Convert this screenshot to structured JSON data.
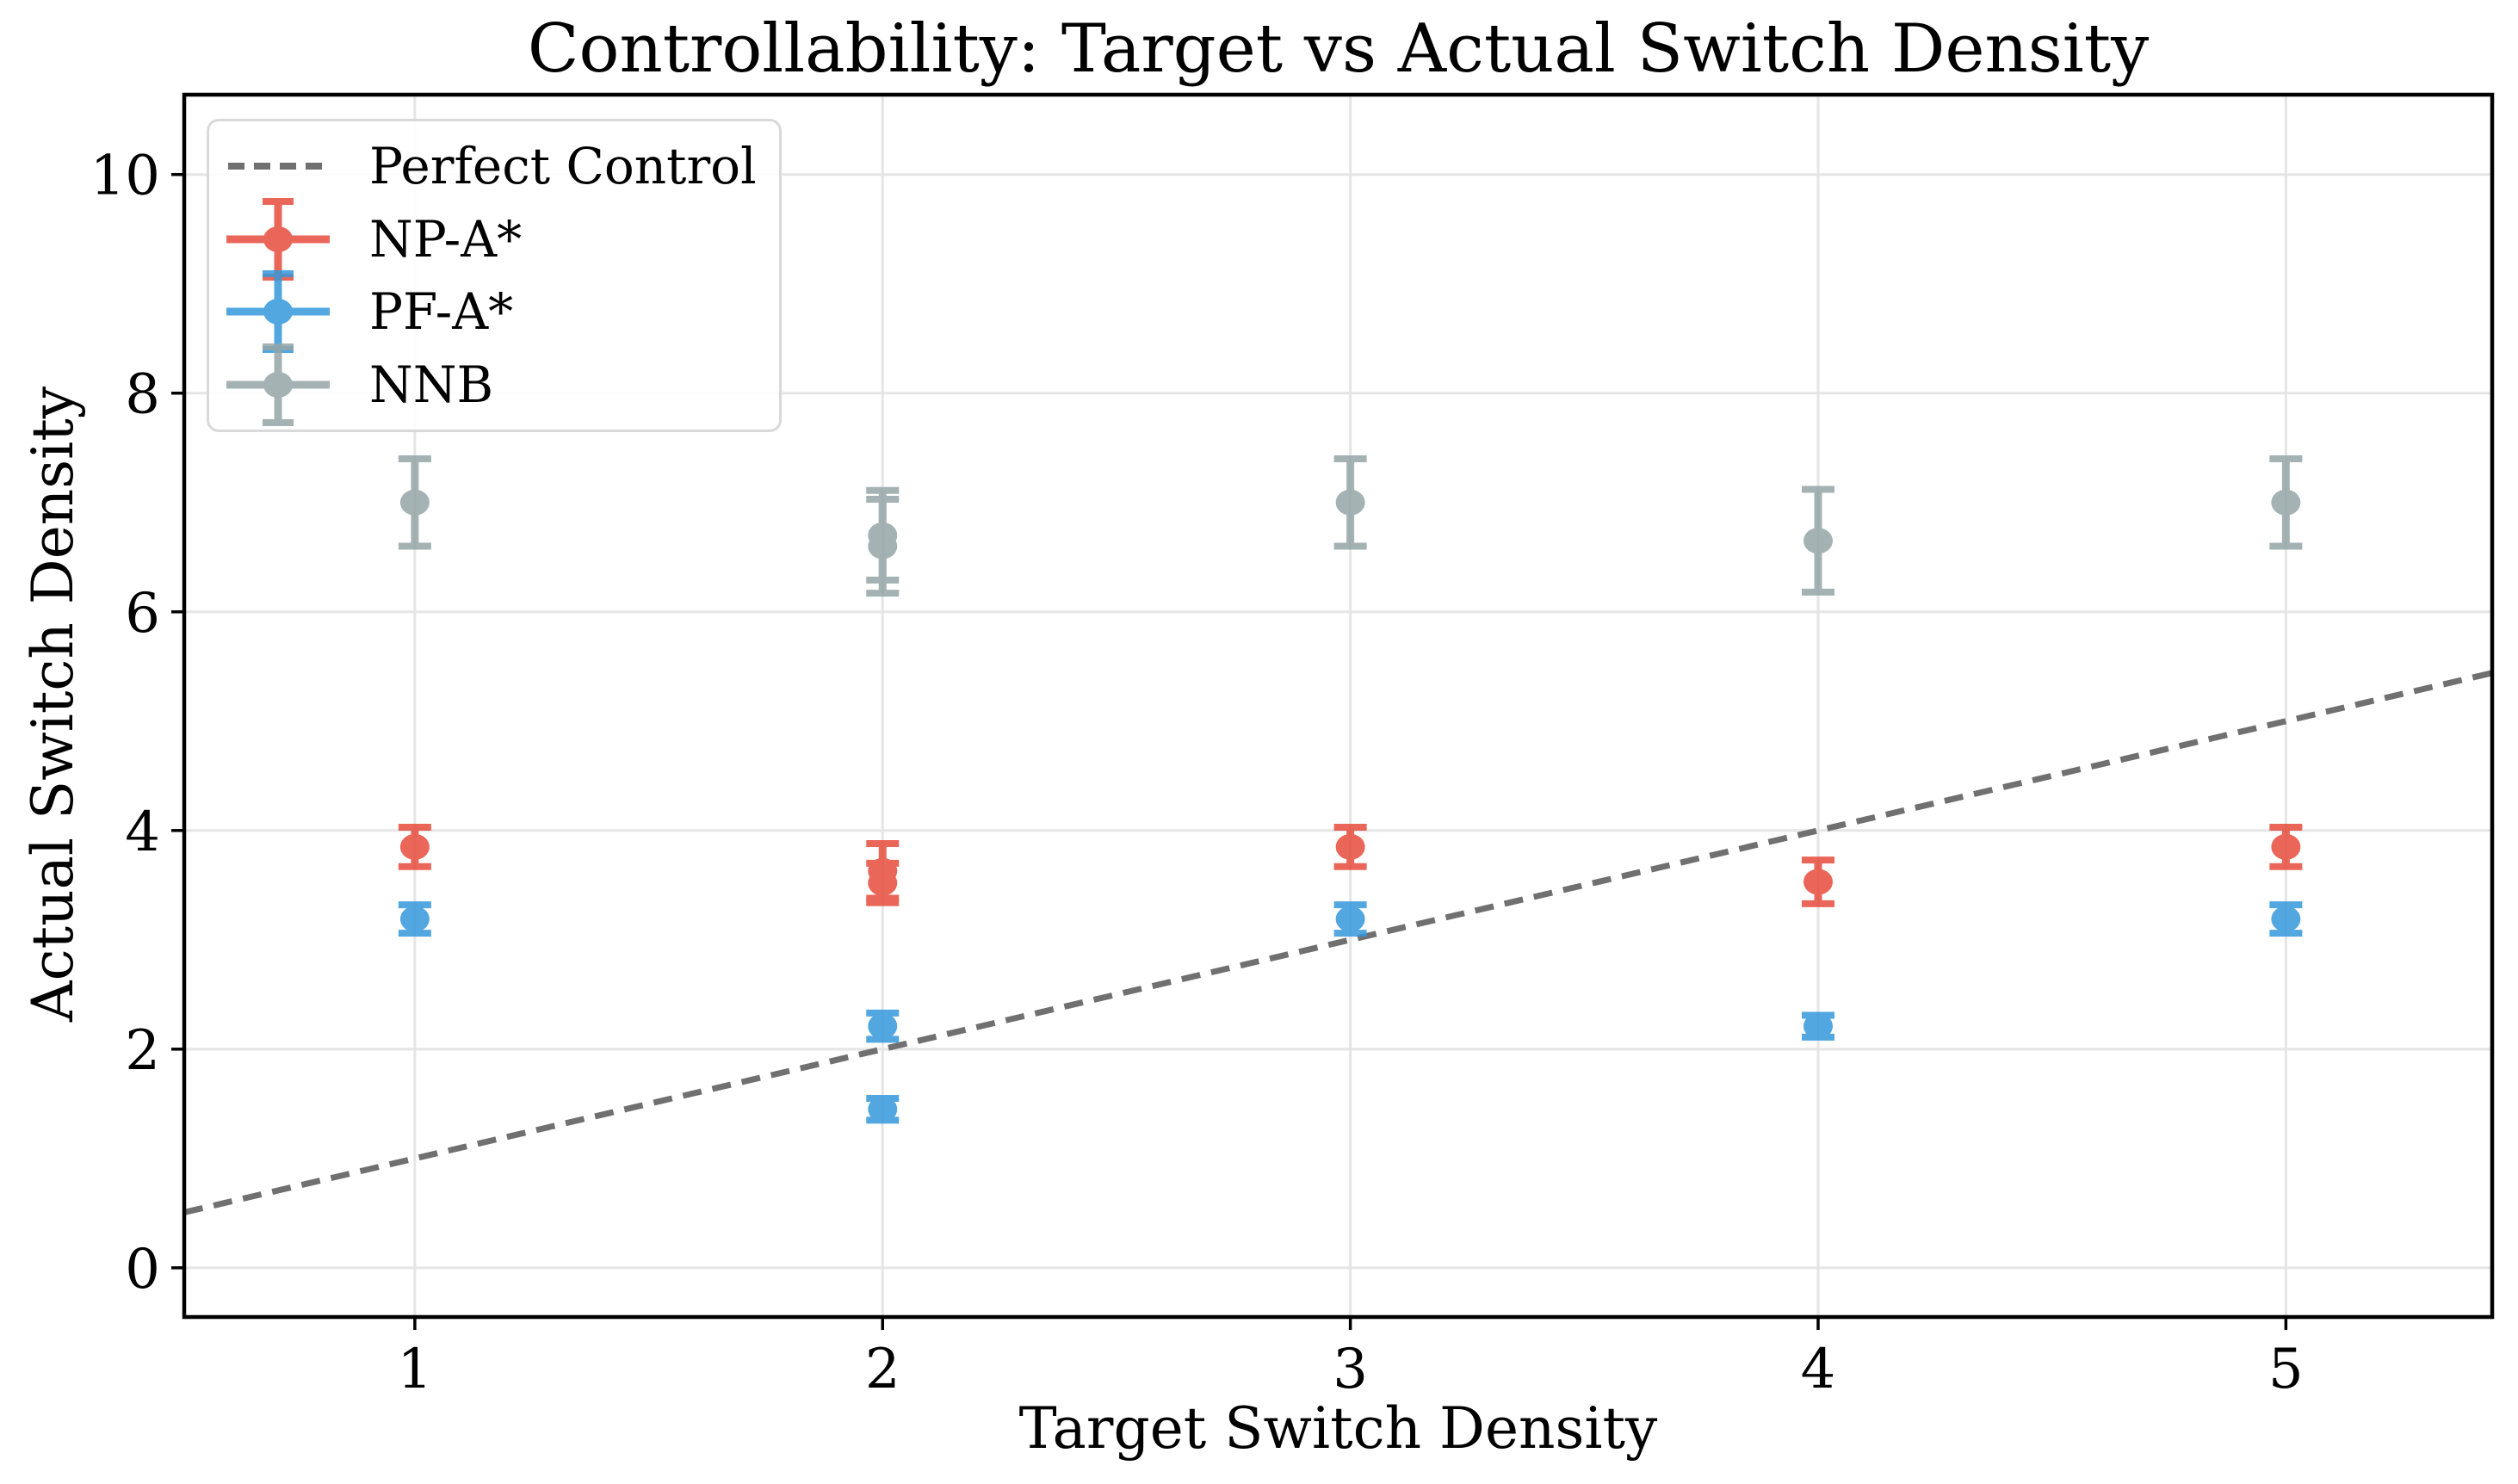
{
  "chart_data": {
    "type": "scatter",
    "title": "Controllability: Target vs Actual Switch Density",
    "xlabel": "Target Switch Density",
    "ylabel": "Actual Switch Density",
    "xlim": [
      0.507,
      5.441
    ],
    "ylim": [
      -0.45,
      10.73
    ],
    "xticks": [
      1,
      2,
      3,
      4,
      5
    ],
    "yticks": [
      0,
      2,
      4,
      6,
      8,
      10
    ],
    "grid": true,
    "grid_color": "#e5e5e5",
    "spine_color": "#000000",
    "text_color": "#000000",
    "legend_position": "upper-left",
    "legend_border_color": "#d9d9d9",
    "reference_line": {
      "label": "Perfect Control",
      "type": "identity",
      "style": "dashed",
      "color": "#707070",
      "x_start": 0.507,
      "x_end": 5.441
    },
    "series": [
      {
        "name": "NP-A*",
        "color": "#e74c3c",
        "points": [
          {
            "x": 1,
            "y": 3.85,
            "err": 0.18
          },
          {
            "x": 2,
            "y": 3.63,
            "err": 0.25
          },
          {
            "x": 2,
            "y": 3.52,
            "err": 0.18
          },
          {
            "x": 3,
            "y": 3.85,
            "err": 0.18
          },
          {
            "x": 4,
            "y": 3.53,
            "err": 0.2
          },
          {
            "x": 5,
            "y": 3.85,
            "err": 0.18
          }
        ]
      },
      {
        "name": "PF-A*",
        "color": "#3498db",
        "points": [
          {
            "x": 1,
            "y": 3.19,
            "err": 0.13
          },
          {
            "x": 2,
            "y": 2.21,
            "err": 0.12
          },
          {
            "x": 2,
            "y": 1.45,
            "err": 0.1
          },
          {
            "x": 3,
            "y": 3.19,
            "err": 0.13
          },
          {
            "x": 4,
            "y": 2.21,
            "err": 0.1
          },
          {
            "x": 5,
            "y": 3.19,
            "err": 0.13
          }
        ]
      },
      {
        "name": "NNB",
        "color": "#95a5a6",
        "points": [
          {
            "x": 1,
            "y": 7.0,
            "err": 0.4
          },
          {
            "x": 2,
            "y": 6.7,
            "err": 0.41
          },
          {
            "x": 2,
            "y": 6.6,
            "err": 0.43
          },
          {
            "x": 3,
            "y": 7.0,
            "err": 0.4
          },
          {
            "x": 4,
            "y": 6.65,
            "err": 0.47
          },
          {
            "x": 5,
            "y": 7.0,
            "err": 0.4
          }
        ]
      }
    ]
  }
}
